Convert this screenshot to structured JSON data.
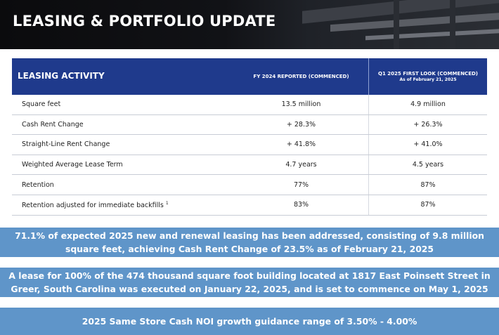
{
  "header": {
    "title": "LEASING & PORTFOLIO UPDATE"
  },
  "table": {
    "label": "LEASING ACTIVITY",
    "columns": [
      {
        "title": "FY 2024 REPORTED (COMMENCED)",
        "subtitle": ""
      },
      {
        "title": "Q1 2025 FIRST LOOK (COMMENCED)",
        "subtitle": "As of February 21, 2025"
      }
    ],
    "rows": [
      {
        "metric": "Square feet",
        "footnote": "",
        "fy2024": "13.5 million",
        "q1_2025": "4.9 million"
      },
      {
        "metric": "Cash Rent Change",
        "footnote": "",
        "fy2024": "+ 28.3%",
        "q1_2025": "+ 26.3%"
      },
      {
        "metric": "Straight-Line Rent Change",
        "footnote": "",
        "fy2024": "+ 41.8%",
        "q1_2025": "+ 41.0%"
      },
      {
        "metric": "Weighted Average Lease Term",
        "footnote": "",
        "fy2024": "4.7 years",
        "q1_2025": "4.5 years"
      },
      {
        "metric": "Retention",
        "footnote": "",
        "fy2024": "77%",
        "q1_2025": "87%"
      },
      {
        "metric": "Retention adjusted for immediate backfills",
        "footnote": "1",
        "fy2024": "83%",
        "q1_2025": "87%"
      }
    ]
  },
  "banners": [
    "71.1% of expected 2025 new and renewal leasing has been addressed, consisting of 9.8 million square feet, achieving Cash Rent Change of 23.5% as of February 21, 2025",
    "A lease for 100% of the 474 thousand square foot building located at 1817 East Poinsett Street in Greer, South Carolina was executed on January 22, 2025, and is set to commence on May 1, 2025",
    "2025 Same Store Cash NOI growth guidance range of 3.50% - 4.00%"
  ],
  "colors": {
    "table_header": "#1f3a8c",
    "banner": "#5f95c9",
    "title_bar": "#111216"
  }
}
